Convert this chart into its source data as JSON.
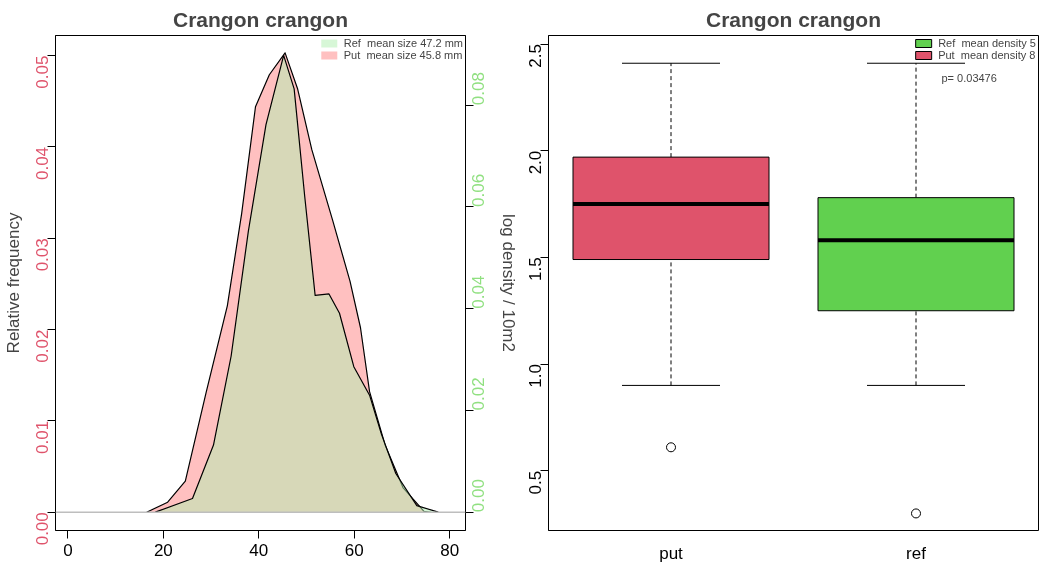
{
  "chart_data": [
    {
      "type": "area",
      "title": "Crangon crangon",
      "ylabel": "Relative frequency",
      "y2label": "log density / 10m2",
      "xlim": [
        -2.6,
        83.3
      ],
      "xticks": [
        0,
        20,
        40,
        60,
        80
      ],
      "ylim": [
        -0.002,
        0.0522
      ],
      "yticks": [
        {
          "value": 0,
          "label": "0.00"
        },
        {
          "value": 0.01,
          "label": "0.01"
        },
        {
          "value": 0.02,
          "label": "0.02"
        },
        {
          "value": 0.03,
          "label": "0.03"
        },
        {
          "value": 0.04,
          "label": "0.04"
        },
        {
          "value": 0.05,
          "label": "0.05"
        }
      ],
      "y2lim": [
        -0.0036,
        0.0937
      ],
      "y2ticks": [
        {
          "value": 0,
          "label": "0.00"
        },
        {
          "value": 0.02,
          "label": "0.02"
        },
        {
          "value": 0.04,
          "label": "0.04"
        },
        {
          "value": 0.06,
          "label": "0.06"
        },
        {
          "value": 0.08,
          "label": "0.08"
        }
      ],
      "series": [
        {
          "name": "Ref  mean size 47.2 mm",
          "color": "#b0f0b0",
          "axis": "y2",
          "x": [
            18.3,
            26.1,
            30.5,
            34.2,
            37.8,
            41.5,
            45.2,
            47.4,
            49.6,
            51.8,
            54.7,
            56.9,
            59.9,
            63.2,
            65.7,
            68.7,
            73.1,
            77.6
          ],
          "values": [
            0,
            0.0027,
            0.0132,
            0.0307,
            0.0552,
            0.0762,
            0.0898,
            0.0832,
            0.0622,
            0.0426,
            0.0429,
            0.0391,
            0.0286,
            0.023,
            0.0153,
            0.0076,
            0.0013,
            0
          ]
        },
        {
          "name": "Put  mean size 45.8 mm",
          "color": "#ffc0c0",
          "x": [
            16.5,
            20.9,
            24.6,
            29.0,
            33.4,
            36.4,
            39.3,
            42.2,
            45.5,
            48.1,
            51.1,
            55.5,
            59.1,
            61.3,
            63.2,
            66.5,
            70.2,
            74.6,
            76.0
          ],
          "values": [
            0,
            0.0011,
            0.0034,
            0.0132,
            0.0226,
            0.0327,
            0.0444,
            0.0479,
            0.0503,
            0.0464,
            0.0397,
            0.0319,
            0.0253,
            0.0202,
            0.0132,
            0.0073,
            0.0027,
            0.0001,
            0
          ]
        }
      ],
      "ref_lines": [
        {
          "axis": "y",
          "value": 0,
          "color": "#bebebe"
        }
      ],
      "legend": "top right",
      "grid": false
    },
    {
      "type": "box",
      "title": "Crangon crangon",
      "categories": [
        "put",
        "ref"
      ],
      "ylim": [
        0.22,
        2.54
      ],
      "yticks": [
        {
          "value": 0.5,
          "label": "0.5"
        },
        {
          "value": 1.0,
          "label": "1.0"
        },
        {
          "value": 1.5,
          "label": "1.5"
        },
        {
          "value": 2.0,
          "label": "2.0"
        },
        {
          "value": 2.5,
          "label": "2.5"
        }
      ],
      "series": [
        {
          "name": "Ref  mean density 5",
          "color": "#61d04f",
          "boxes": [
            null,
            {
              "low": 0.9,
              "q1": 1.25,
              "median": 1.58,
              "q3": 1.78,
              "high": 2.41,
              "outliers": [
                0.3
              ]
            }
          ]
        },
        {
          "name": "Put  mean density 8",
          "color": "#df536b",
          "boxes": [
            {
              "low": 0.9,
              "q1": 1.49,
              "median": 1.75,
              "q3": 1.97,
              "high": 2.41,
              "outliers": [
                0.61
              ]
            },
            null
          ]
        }
      ],
      "annotations": [
        "p= 0.03476"
      ],
      "legend": "top right",
      "grid": false
    }
  ]
}
